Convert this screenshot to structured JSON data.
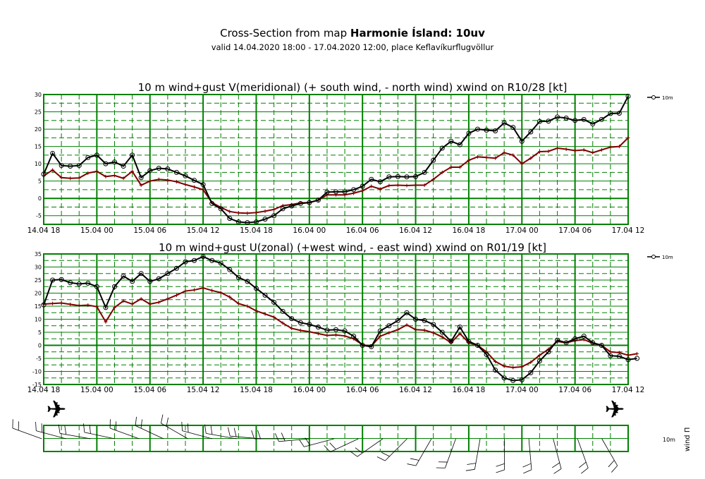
{
  "header": {
    "title_prefix": "Cross-Section from map ",
    "title_model": "Harmonie Ísland: 10uv",
    "subtitle": "valid 14.04.2020 18:00 - 17.04.2020 12:00, place Keflavíkurflugvöllur"
  },
  "colors": {
    "grid": "#008000",
    "series_10m": "#000000",
    "series_second": "#800000"
  },
  "chart_data": [
    {
      "type": "line",
      "title": "10 m wind+gust V(meridional) (+ south wind, - north wind) xwind on R10/28 [kt]",
      "xlabel": "",
      "ylabel": "",
      "x_ticks": [
        "14.04 18",
        "15.04 00",
        "15.04 06",
        "15.04 12",
        "15.04 18",
        "16.04 00",
        "16.04 06",
        "16.04 12",
        "16.04 18",
        "17.04 00",
        "17.04 06",
        "17.04 12"
      ],
      "y_ticks": [
        30,
        25,
        20,
        15,
        10,
        5,
        0,
        -5
      ],
      "ylim": [
        -7.5,
        30
      ],
      "legend": {
        "label": "10m",
        "position": "right"
      },
      "series": [
        {
          "name": "10m",
          "marker": "circle",
          "values": [
            7,
            13,
            9.5,
            9.3,
            9.5,
            11.8,
            12.5,
            10,
            10.5,
            9.3,
            12.5,
            6,
            8,
            8.7,
            8.5,
            7.5,
            6.5,
            5.2,
            4,
            -1.5,
            -3,
            -5.8,
            -6.8,
            -7,
            -6.8,
            -6,
            -5,
            -3,
            -2.2,
            -1.5,
            -1.2,
            -0.5,
            1.8,
            1.9,
            1.9,
            2.5,
            3.5,
            5.5,
            4.8,
            6.2,
            6.3,
            6.2,
            6.3,
            7.5,
            11,
            14.5,
            16.5,
            15.5,
            18.8,
            20,
            19.7,
            19.5,
            21.8,
            20.5,
            16.5,
            19.2,
            22.2,
            22.3,
            23.5,
            23.2,
            22.5,
            22.8,
            21.5,
            22.8,
            24.5,
            24.6,
            29.5
          ]
        },
        {
          "values": [
            6.5,
            8.2,
            6,
            5.8,
            5.9,
            7.3,
            7.8,
            6.3,
            6.6,
            5.8,
            7.8,
            3.8,
            5,
            5.5,
            5.3,
            4.8,
            4,
            3.3,
            2.5,
            -1.2,
            -2.6,
            -3.8,
            -4.2,
            -4.3,
            -4.1,
            -3.7,
            -3.2,
            -2.1,
            -1.8,
            -1.3,
            -1.2,
            -0.5,
            1,
            1,
            1,
            1.5,
            2.2,
            3.5,
            2.7,
            3.7,
            3.8,
            3.7,
            3.8,
            3.8,
            5.5,
            7.5,
            9,
            9,
            11,
            12,
            11.8,
            11.6,
            13.2,
            12.5,
            10,
            11.6,
            13.5,
            13.6,
            14.5,
            14.2,
            13.8,
            14,
            13.2,
            14,
            14.8,
            15,
            17.5
          ]
        }
      ]
    },
    {
      "type": "line",
      "title": "10 m wind+gust U(zonal) (+west wind, - east wind) xwind on R01/19 [kt]",
      "xlabel": "",
      "ylabel": "",
      "x_ticks": [
        "14.04 18",
        "15.04 00",
        "15.04 06",
        "15.04 12",
        "15.04 18",
        "16.04 00",
        "16.04 06",
        "16.04 12",
        "16.04 18",
        "17.04 00",
        "17.04 06",
        "17.04 12"
      ],
      "y_ticks": [
        35,
        30,
        25,
        20,
        15,
        10,
        5,
        0,
        -5,
        -10,
        -15
      ],
      "ylim": [
        -15,
        35
      ],
      "legend": {
        "label": "10m",
        "position": "right"
      },
      "series": [
        {
          "name": "10m",
          "marker": "circle",
          "values": [
            15.5,
            25,
            25.2,
            24,
            23.5,
            23.8,
            22.5,
            14.5,
            22.5,
            26.5,
            24.5,
            27.5,
            24.5,
            25.5,
            27.5,
            29.5,
            32,
            32.5,
            34,
            32.5,
            31.5,
            29,
            26,
            24.5,
            21.8,
            19.2,
            16.5,
            13,
            10.2,
            8.7,
            8,
            7,
            5.8,
            6,
            5.5,
            3.5,
            0,
            -0.5,
            5.5,
            7.5,
            9.5,
            12.5,
            10,
            9.5,
            8,
            5,
            1.5,
            7,
            1.5,
            0,
            -3.5,
            -9.5,
            -12.5,
            -13.5,
            -13.2,
            -10.5,
            -6,
            -2.5,
            2,
            1,
            2.5,
            3.5,
            1,
            0,
            -4,
            -4.2,
            -5.5,
            -5
          ]
        },
        {
          "values": [
            15.8,
            16,
            16.2,
            15.7,
            15.2,
            15.4,
            14.8,
            9,
            14.5,
            17,
            15.8,
            17.8,
            15.8,
            16.5,
            17.8,
            19.2,
            20.8,
            21.2,
            22,
            21,
            20.2,
            18.5,
            16,
            15,
            13.2,
            12,
            10.8,
            8.5,
            6.5,
            5.7,
            5.2,
            4.5,
            3.8,
            4,
            3.6,
            2.5,
            0.2,
            -0.3,
            3.5,
            4.8,
            6,
            7.8,
            6,
            5.8,
            4.8,
            3.2,
            1,
            4.5,
            1,
            0,
            -2.5,
            -6.2,
            -8,
            -8.5,
            -8.2,
            -6.5,
            -3.8,
            -1.5,
            1.5,
            1,
            1.8,
            2.2,
            0.8,
            0,
            -2.5,
            -2.8,
            -3.8,
            -3.2
          ]
        }
      ]
    }
  ],
  "bottom_panel": {
    "legend_label": "10m",
    "axis_label": "wind Π",
    "wind_barbs": [
      {
        "direction_deg": 290
      },
      {
        "direction_deg": 285
      },
      {
        "direction_deg": 280
      },
      {
        "direction_deg": 282
      },
      {
        "direction_deg": 290
      },
      {
        "direction_deg": 295
      },
      {
        "direction_deg": 300
      },
      {
        "direction_deg": 285
      },
      {
        "direction_deg": 280
      },
      {
        "direction_deg": 275
      },
      {
        "direction_deg": 270
      },
      {
        "direction_deg": 265
      },
      {
        "direction_deg": 255
      },
      {
        "direction_deg": 245
      },
      {
        "direction_deg": 235
      },
      {
        "direction_deg": 225
      },
      {
        "direction_deg": 210
      },
      {
        "direction_deg": 200
      },
      {
        "direction_deg": 190
      },
      {
        "direction_deg": 180
      },
      {
        "direction_deg": 175
      },
      {
        "direction_deg": 165
      },
      {
        "direction_deg": 160
      },
      {
        "direction_deg": 150
      }
    ]
  }
}
